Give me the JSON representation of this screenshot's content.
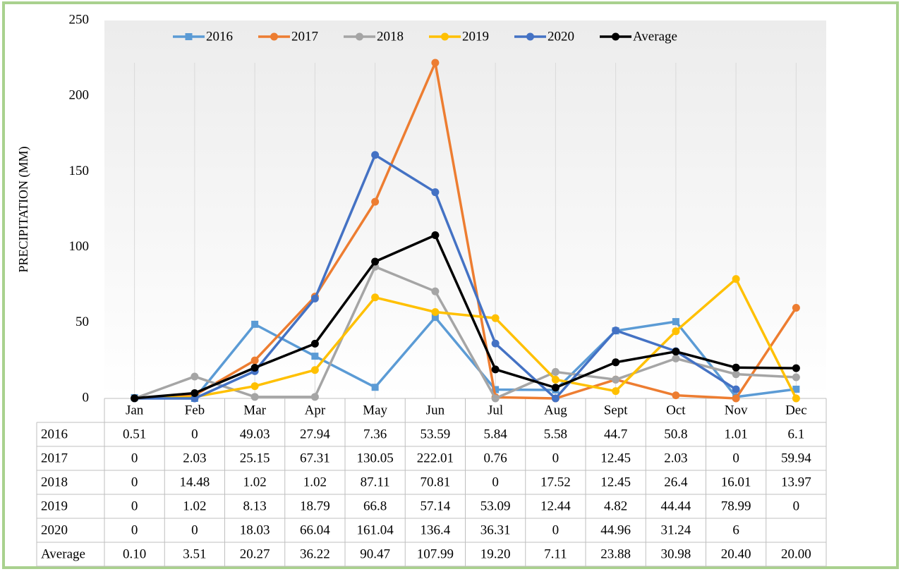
{
  "chart_data": {
    "type": "line",
    "ylabel": "PRECIPITATION (MM)",
    "categories": [
      "Jan",
      "Feb",
      "Mar",
      "Apr",
      "May",
      "Jun",
      "Jul",
      "Aug",
      "Sept",
      "Oct",
      "Nov",
      "Dec"
    ],
    "ylim": [
      0,
      250
    ],
    "yticks": [
      0,
      50,
      100,
      150,
      200,
      250
    ],
    "legend": "top",
    "series": [
      {
        "name": "2016",
        "color": "#5b9bd5",
        "marker": "square",
        "values": [
          0.51,
          0,
          49.03,
          27.94,
          7.36,
          53.59,
          5.84,
          5.58,
          44.7,
          50.8,
          1.01,
          6.1
        ]
      },
      {
        "name": "2017",
        "color": "#ed7d31",
        "marker": "circle",
        "values": [
          0,
          2.03,
          25.15,
          67.31,
          130.05,
          222.01,
          0.76,
          0,
          12.45,
          2.03,
          0,
          59.94
        ]
      },
      {
        "name": "2018",
        "color": "#a5a5a5",
        "marker": "circle",
        "values": [
          0,
          14.48,
          1.02,
          1.02,
          87.11,
          70.81,
          0,
          17.52,
          12.45,
          26.4,
          16.01,
          13.97
        ]
      },
      {
        "name": "2019",
        "color": "#ffc000",
        "marker": "circle",
        "values": [
          0,
          1.02,
          8.13,
          18.79,
          66.8,
          57.14,
          53.09,
          12.44,
          4.82,
          44.44,
          78.99,
          0
        ]
      },
      {
        "name": "2020",
        "color": "#4472c4",
        "marker": "circle",
        "values": [
          0,
          0,
          18.03,
          66.04,
          161.04,
          136.4,
          36.31,
          0,
          44.96,
          31.24,
          6,
          null
        ]
      },
      {
        "name": "Average",
        "color": "#000000",
        "marker": "circle",
        "values": [
          0.1,
          3.51,
          20.27,
          36.22,
          90.47,
          107.99,
          19.2,
          7.11,
          23.88,
          30.98,
          20.4,
          20
        ],
        "value_labels": [
          "0.10",
          "3.51",
          "20.27",
          "36.22",
          "90.47",
          "107.99",
          "19.20",
          "7.11",
          "23.88",
          "30.98",
          "20.40",
          "20.00"
        ]
      }
    ]
  }
}
